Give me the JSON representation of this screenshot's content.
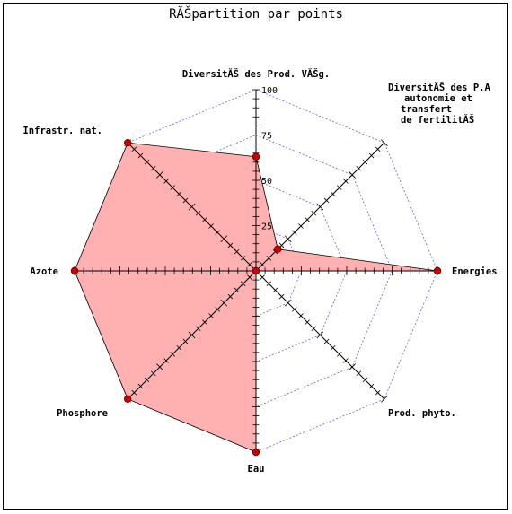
{
  "chart_data": {
    "type": "radar",
    "title": "RĂŠpartition par points",
    "axes": [
      [
        "DiversitĂŠ des Prod. VĂŠg."
      ],
      [
        "DiversitĂŠ des P.A",
        "autonomie et",
        "transfert",
        "de fertilitĂŠ"
      ],
      [
        "Energies"
      ],
      [
        "Prod. phyto."
      ],
      [
        "Eau"
      ],
      [
        "Phosphore"
      ],
      [
        "Azote"
      ],
      [
        "Infrastr. nat."
      ]
    ],
    "values": [
      63,
      17,
      100,
      0,
      100,
      100,
      100,
      100
    ],
    "range": [
      0,
      100
    ],
    "ticks": [
      25,
      50,
      75,
      100
    ],
    "colors": {
      "fill": "#ffb0b0",
      "line": "#000000",
      "marker": "#cc0000",
      "grid": "#6666cc"
    }
  }
}
